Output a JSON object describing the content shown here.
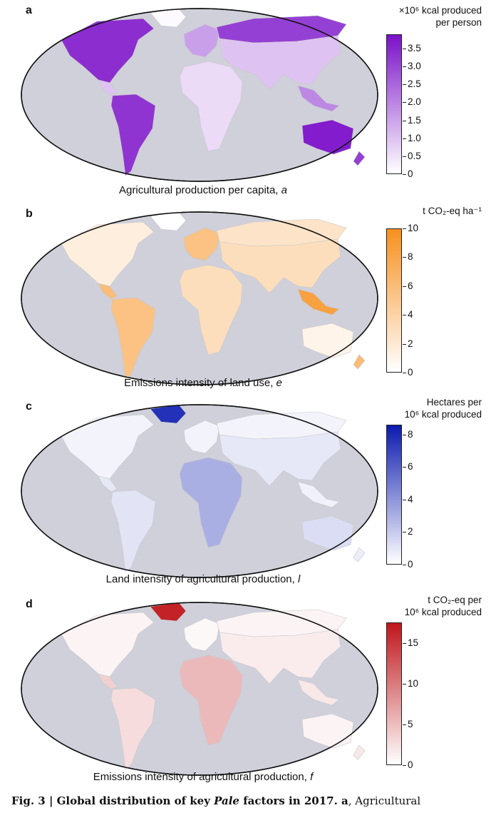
{
  "chart_data": [
    {
      "type": "heatmap",
      "panel": "a",
      "caption_text": "Agricultural production per capita, ",
      "caption_var": "a",
      "colorbar_title": [
        "×10⁶ kcal produced",
        "per person"
      ],
      "colorbar_ticks": [
        "3.5",
        "3.0",
        "2.5",
        "2.0",
        "1.5",
        "1.0",
        "0.5",
        "0"
      ],
      "colorbar_range": [
        0,
        3.9
      ],
      "colors": {
        "low": "#ffffff",
        "high": "#7b10c9",
        "ocean": "#cfd0da"
      }
    },
    {
      "type": "heatmap",
      "panel": "b",
      "caption_text": "Emissions intensity of land use, ",
      "caption_var": "e",
      "colorbar_title": [
        "t CO₂-eq ha⁻¹"
      ],
      "colorbar_ticks": [
        "10",
        "8",
        "6",
        "4",
        "2",
        "0"
      ],
      "colorbar_range": [
        0,
        10
      ],
      "colors": {
        "low": "#ffffff",
        "high": "#f7901e",
        "ocean": "#cfd0da"
      }
    },
    {
      "type": "heatmap",
      "panel": "c",
      "caption_text": "Land intensity of agricultural production, ",
      "caption_var": "l",
      "colorbar_title": [
        "Hectares per",
        "10⁶ kcal produced"
      ],
      "colorbar_ticks": [
        "8",
        "6",
        "4",
        "2",
        "0"
      ],
      "colorbar_range": [
        0,
        8.6
      ],
      "colors": {
        "low": "#ffffff",
        "high": "#0b1ab0",
        "ocean": "#cfd0da"
      }
    },
    {
      "type": "heatmap",
      "panel": "d",
      "caption_text": "Emissions intensity of agricultural production, ",
      "caption_var": "f",
      "colorbar_title": [
        "t CO₂-eq per",
        "10⁶ kcal produced"
      ],
      "colorbar_ticks": [
        "15",
        "10",
        "5",
        "0"
      ],
      "colorbar_range": [
        0,
        17.5
      ],
      "colors": {
        "low": "#ffffff",
        "high": "#c0161b",
        "ocean": "#cfd0da"
      }
    }
  ],
  "figure_caption": {
    "label": "Fig. 3 | Global distribution of key ",
    "label_italic": "Pale",
    "label_end": " factors in 2017. a",
    "text": ", Agricultural"
  }
}
